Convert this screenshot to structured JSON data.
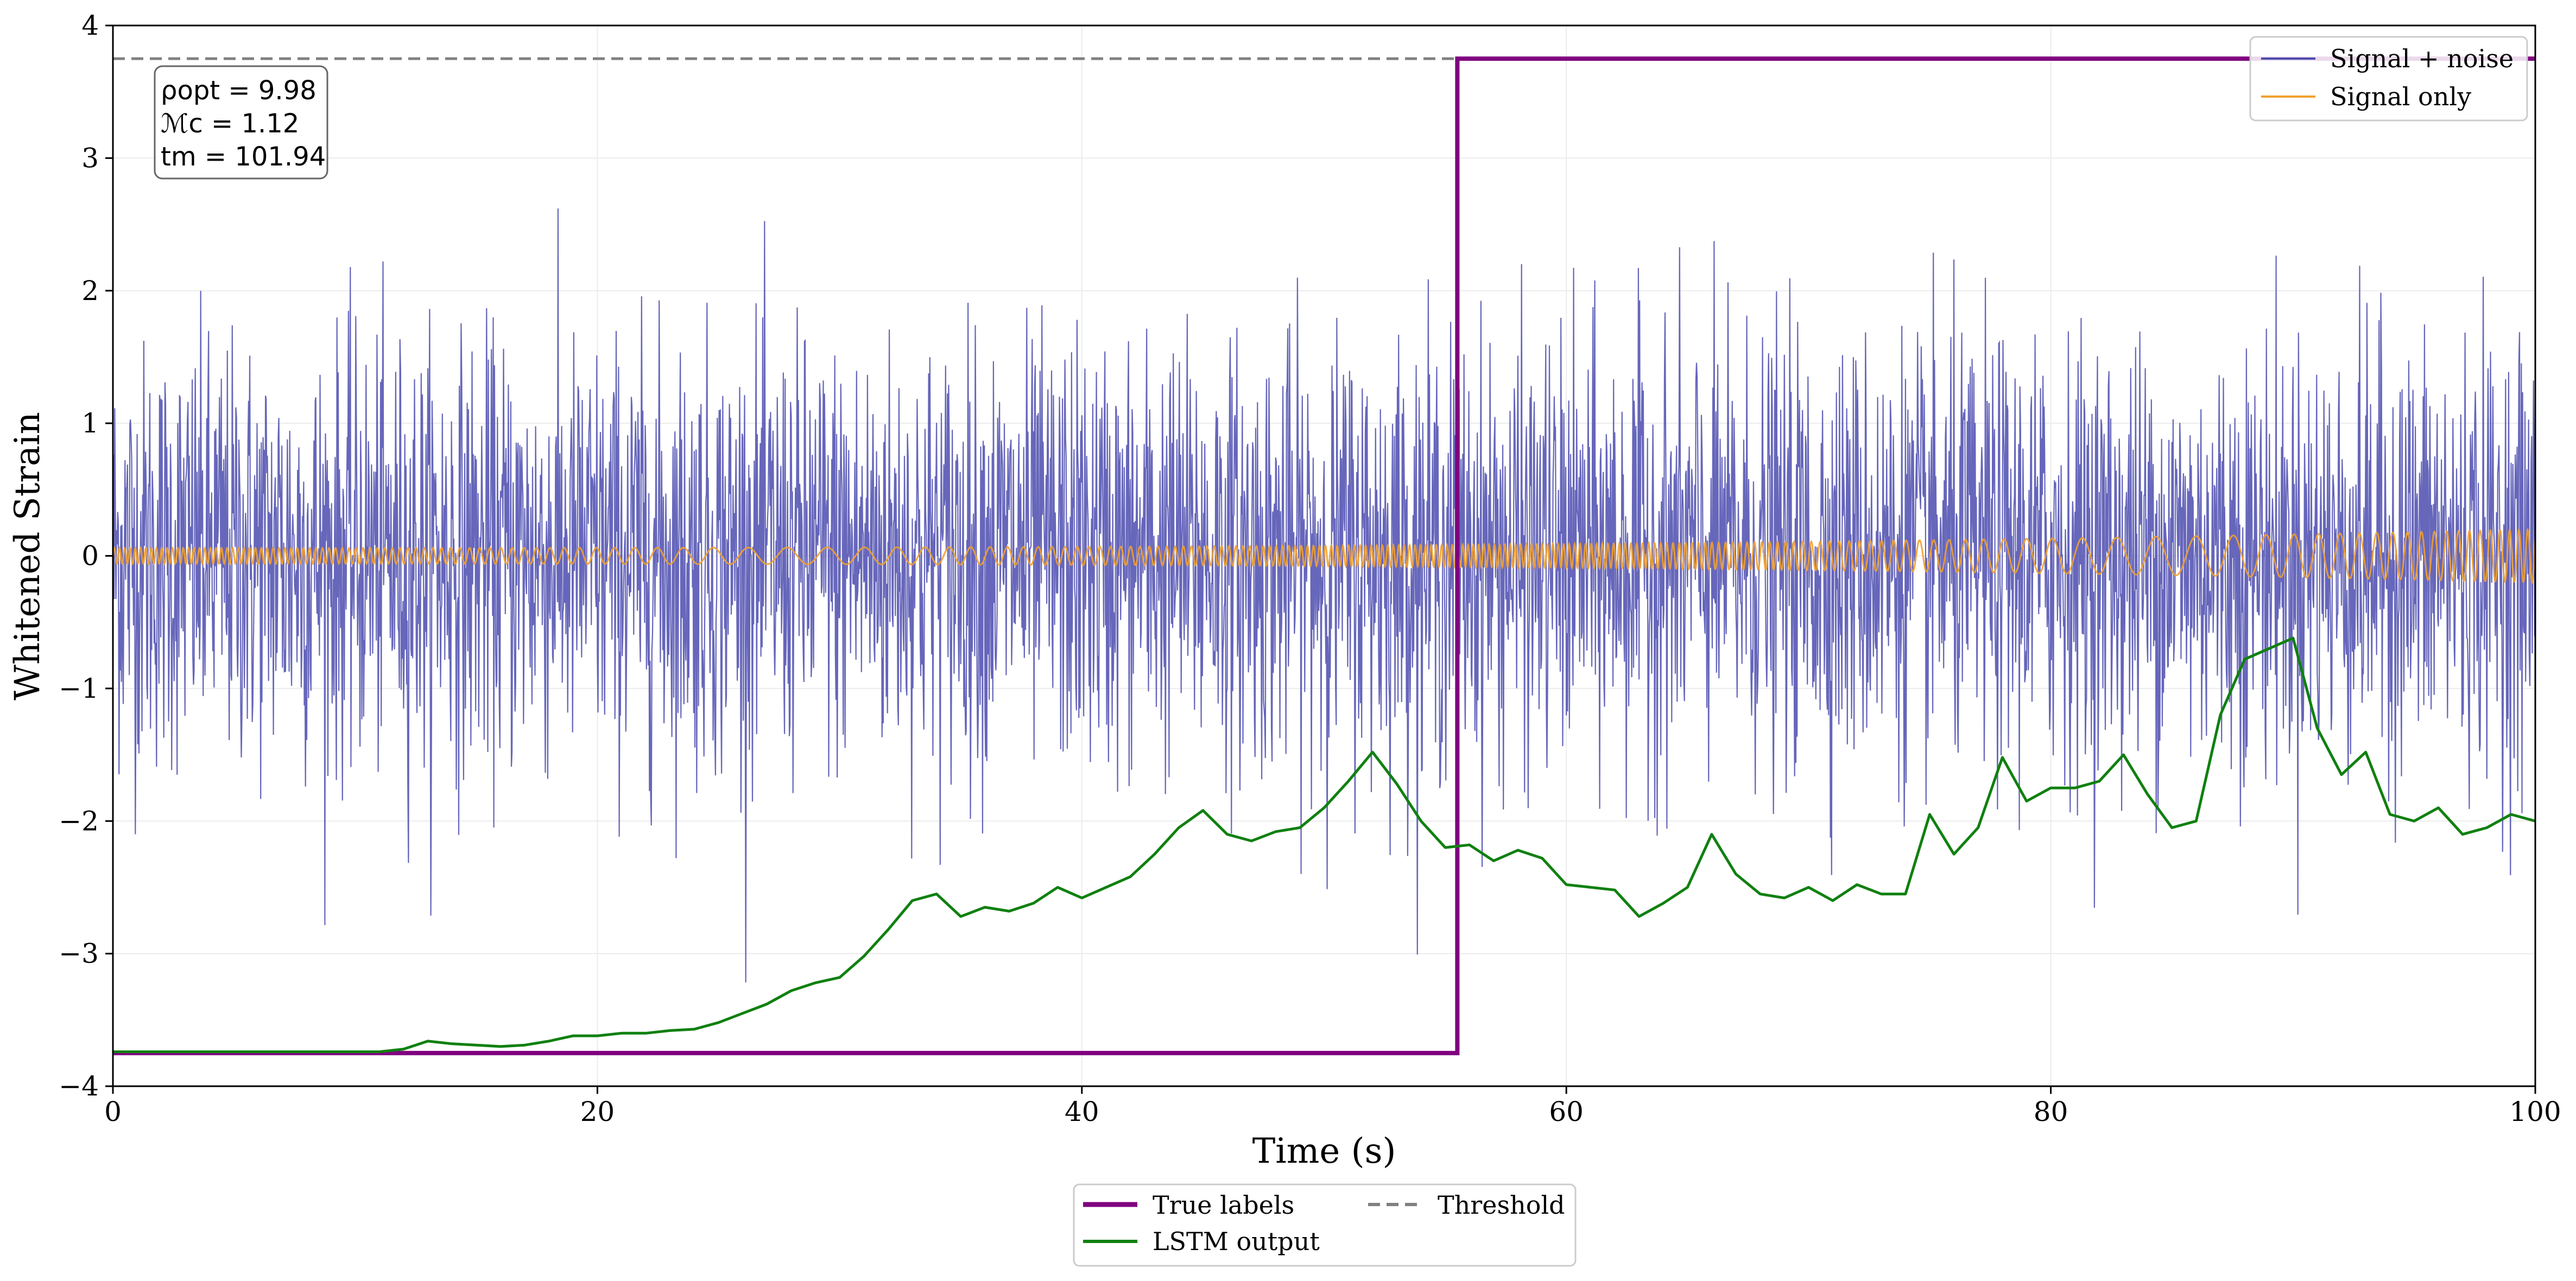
{
  "chart_data": {
    "type": "line",
    "title": "",
    "xlabel": "Time (s)",
    "ylabel": "Whitened Strain",
    "xlim": [
      0,
      100
    ],
    "ylim": [
      -4,
      4
    ],
    "xticks": [
      0,
      20,
      40,
      60,
      80,
      100
    ],
    "yticks": [
      -4,
      -3,
      -2,
      -1,
      0,
      1,
      2,
      3,
      4
    ],
    "grid": true,
    "x_tick_labels": [
      "0",
      "20",
      "40",
      "60",
      "80",
      "100"
    ],
    "y_tick_labels": [
      "−4",
      "−3",
      "−2",
      "−1",
      "0",
      "1",
      "2",
      "3",
      "4"
    ],
    "series": [
      {
        "name": "Signal + noise",
        "color": "#4b4baf",
        "style": "noisy line, approx. standard deviation 0.8",
        "x_range": [
          0,
          100
        ],
        "approx_std": 0.8
      },
      {
        "name": "Signal only",
        "color": "#f0a030",
        "style": "chirp, amplitude rising to about 0.2 by t=100",
        "x_range": [
          0,
          100
        ],
        "approx_amplitude_end": 0.2
      },
      {
        "name": "True labels",
        "color": "#800080",
        "style": "step",
        "x": [
          0,
          55.5,
          55.5,
          100
        ],
        "y": [
          -3.75,
          -3.75,
          3.75,
          3.75
        ]
      },
      {
        "name": "LSTM output",
        "color": "#108010",
        "x": [
          0,
          11,
          12,
          13,
          14,
          15,
          16,
          17,
          18,
          19,
          20,
          21,
          22,
          23,
          24,
          25,
          26,
          27,
          28,
          29,
          30,
          31,
          32,
          33,
          34,
          35,
          36,
          37,
          38,
          39,
          40,
          41,
          42,
          43,
          44,
          45,
          46,
          47,
          48,
          49,
          50,
          51,
          52,
          53,
          54,
          55,
          56,
          57,
          58,
          59,
          60,
          61,
          62,
          63,
          64,
          65,
          66,
          67,
          68,
          69,
          70,
          71,
          72,
          73,
          74,
          75,
          76,
          77,
          78,
          79,
          80,
          81,
          82,
          83,
          84,
          85,
          86,
          87,
          88,
          89,
          90,
          91,
          92,
          93,
          94,
          95,
          96,
          97,
          98,
          99,
          100
        ],
        "y": [
          -3.74,
          -3.74,
          -3.72,
          -3.66,
          -3.68,
          -3.69,
          -3.7,
          -3.69,
          -3.66,
          -3.62,
          -3.62,
          -3.6,
          -3.6,
          -3.58,
          -3.57,
          -3.52,
          -3.45,
          -3.38,
          -3.28,
          -3.22,
          -3.18,
          -3.02,
          -2.82,
          -2.6,
          -2.55,
          -2.72,
          -2.65,
          -2.68,
          -2.62,
          -2.5,
          -2.58,
          -2.5,
          -2.42,
          -2.25,
          -2.05,
          -1.92,
          -2.1,
          -2.15,
          -2.08,
          -2.05,
          -1.9,
          -1.7,
          -1.48,
          -1.72,
          -2.0,
          -2.2,
          -2.18,
          -2.3,
          -2.22,
          -2.28,
          -2.48,
          -2.5,
          -2.52,
          -2.72,
          -2.62,
          -2.5,
          -2.1,
          -2.4,
          -2.55,
          -2.58,
          -2.5,
          -2.6,
          -2.48,
          -2.55,
          -2.55,
          -1.95,
          -2.25,
          -2.05,
          -1.52,
          -1.85,
          -1.75,
          -1.75,
          -1.7,
          -1.5,
          -1.8,
          -2.05,
          -2.0,
          -1.2,
          -0.78,
          -0.7,
          -0.62,
          -1.3,
          -1.65,
          -1.48,
          -1.95,
          -2.0,
          -1.9,
          -2.1,
          -2.05,
          -1.95,
          -2.0
        ]
      },
      {
        "name": "Threshold",
        "color": "#808080",
        "style": "dashed horizontal",
        "y": 3.75
      }
    ],
    "annotation": {
      "lines": [
        "ρopt = 9.98",
        "ℳc = 1.12",
        "tm = 101.94"
      ]
    },
    "legend_top_right": [
      "Signal + noise",
      "Signal only"
    ],
    "legend_bottom": [
      "True labels",
      "LSTM output",
      "Threshold"
    ],
    "legend_placement": [
      "top-right",
      "bottom-center (outside axes)"
    ]
  }
}
